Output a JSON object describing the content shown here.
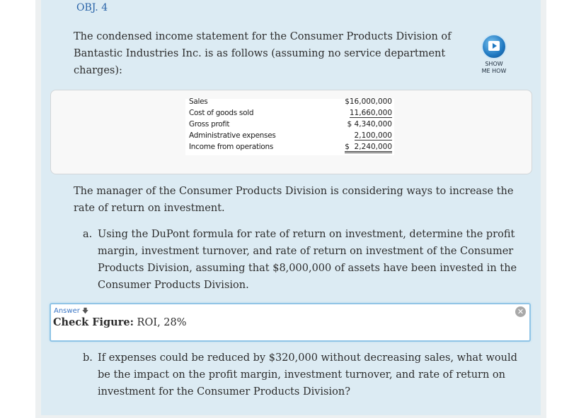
{
  "header": {
    "obj": "OBJ. 4"
  },
  "intro": "The condensed income statement for the Consumer Products Division of Bantastic Industries Inc. is as follows (assuming no service department charges):",
  "show_me": {
    "line1": "SHOW",
    "line2": "ME HOW",
    "icon": "play-video-icon"
  },
  "statement": {
    "rows": [
      {
        "label": "Sales",
        "value": "$16,000,000"
      },
      {
        "label": "Cost of goods sold",
        "value": "11,660,000"
      },
      {
        "label": "Gross profit",
        "value": "$ 4,340,000"
      },
      {
        "label": "Administrative expenses",
        "value": "2,100,000"
      },
      {
        "label": "Income from operations",
        "value": "$  2,240,000"
      }
    ]
  },
  "paragraph": "The manager of the Consumer Products Division is considering ways to increase the rate of return on investment.",
  "question_a": {
    "letter": "a.",
    "text": "Using the DuPont formula for rate of return on investment, determine the profit margin, investment turnover, and rate of return on investment of the Consumer Products Division, assuming that $8,000,000 of assets have been invested in the Consumer Products Division."
  },
  "answer": {
    "label": "Answer",
    "check_label": "Check Figure:",
    "check_value": " ROI, 28%"
  },
  "question_b": {
    "letter": "b.",
    "text": "If expenses could be reduced by $320,000 without decreasing sales, what would be the impact on the profit margin, investment turnover, and rate of return on investment for the Consumer Products Division?"
  }
}
